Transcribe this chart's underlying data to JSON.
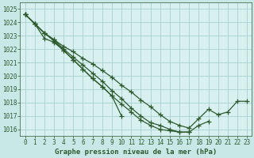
{
  "background_color": "#c8e8e8",
  "plot_bg_color": "#d8f0f0",
  "grid_color": "#a0c8c8",
  "line_color": "#2d5a2d",
  "title": "Graphe pression niveau de la mer (hPa)",
  "xlim": [
    -0.5,
    23.5
  ],
  "ylim": [
    1015.5,
    1025.5
  ],
  "yticks": [
    1016,
    1017,
    1018,
    1019,
    1020,
    1021,
    1022,
    1023,
    1024,
    1025
  ],
  "xticks": [
    0,
    1,
    2,
    3,
    4,
    5,
    6,
    7,
    8,
    9,
    10,
    11,
    12,
    13,
    14,
    15,
    16,
    17,
    18,
    19,
    20,
    21,
    22,
    23
  ],
  "series": [
    [
      1024.6,
      1023.9,
      1023.2,
      1022.7,
      1022.2,
      1021.8,
      1021.3,
      1020.9,
      1020.4,
      1019.9,
      1019.3,
      1018.8,
      1018.2,
      1017.7,
      1017.1,
      1016.6,
      1016.3,
      1016.1,
      1016.8,
      1017.5,
      1017.1,
      1017.3,
      1018.1,
      1018.1
    ],
    [
      1024.6,
      1023.9,
      1023.2,
      1022.7,
      1022.0,
      1021.4,
      1020.8,
      1020.2,
      1019.6,
      1018.9,
      1018.3,
      1017.6,
      1017.0,
      1016.5,
      1016.3,
      1016.0,
      1015.8,
      1015.8,
      1016.3,
      1016.6,
      null,
      null,
      null,
      null
    ],
    [
      1024.6,
      1023.9,
      1023.2,
      1022.6,
      1021.9,
      1021.2,
      1020.5,
      1019.8,
      1019.2,
      1018.5,
      1017.9,
      1017.3,
      1016.7,
      1016.3,
      1016.0,
      1015.9,
      1015.8,
      1015.8,
      null,
      null,
      null,
      null,
      null,
      null
    ],
    [
      1024.6,
      1023.9,
      1022.8,
      1022.5,
      1021.9,
      1021.2,
      1020.5,
      1019.8,
      1019.2,
      1018.5,
      1017.0,
      null,
      null,
      null,
      null,
      null,
      null,
      null,
      null,
      null,
      null,
      null,
      null,
      null
    ]
  ]
}
